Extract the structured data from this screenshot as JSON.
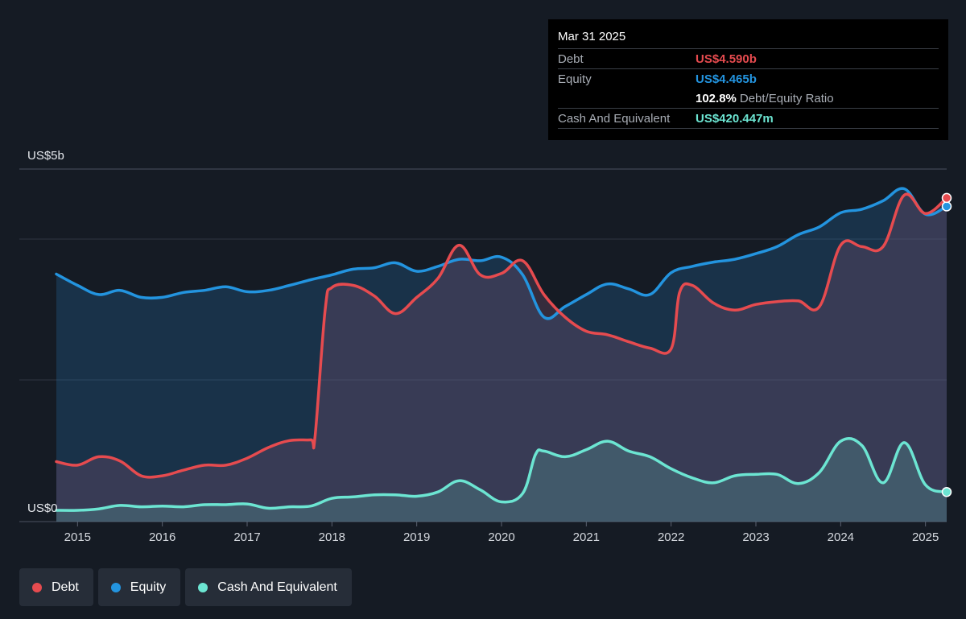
{
  "tooltip": {
    "date": "Mar 31 2025",
    "debt_label": "Debt",
    "debt_value": "US$4.590b",
    "equity_label": "Equity",
    "equity_value": "US$4.465b",
    "ratio_value": "102.8%",
    "ratio_label": "Debt/Equity Ratio",
    "cash_label": "Cash And Equivalent",
    "cash_value": "US$420.447m"
  },
  "legend": {
    "debt": "Debt",
    "equity": "Equity",
    "cash": "Cash And Equivalent"
  },
  "colors": {
    "debt": "#e64b4f",
    "equity": "#2394df",
    "cash": "#6ce5d2",
    "background": "#151b24"
  },
  "chart_data": {
    "type": "area",
    "ylabel_top": "US$5b",
    "ylabel_bottom": "US$0",
    "ylim": [
      0,
      5
    ],
    "xlim": [
      2014.75,
      2025.25
    ],
    "xticks": [
      "2015",
      "2016",
      "2017",
      "2018",
      "2019",
      "2020",
      "2021",
      "2022",
      "2023",
      "2024",
      "2025"
    ],
    "series": [
      {
        "name": "Debt",
        "x": [
          2014.75,
          2015.0,
          2015.25,
          2015.5,
          2015.75,
          2016.0,
          2016.25,
          2016.5,
          2016.75,
          2017.0,
          2017.25,
          2017.5,
          2017.75,
          2017.8,
          2017.92,
          2018.0,
          2018.25,
          2018.5,
          2018.75,
          2019.0,
          2019.25,
          2019.5,
          2019.75,
          2020.0,
          2020.25,
          2020.5,
          2020.75,
          2021.0,
          2021.25,
          2021.5,
          2021.75,
          2022.0,
          2022.1,
          2022.25,
          2022.5,
          2022.75,
          2023.0,
          2023.25,
          2023.5,
          2023.75,
          2024.0,
          2024.25,
          2024.5,
          2024.75,
          2025.0,
          2025.25
        ],
        "values": [
          0.85,
          0.8,
          0.92,
          0.86,
          0.65,
          0.65,
          0.73,
          0.8,
          0.8,
          0.9,
          1.05,
          1.15,
          1.16,
          1.2,
          3.0,
          3.32,
          3.35,
          3.2,
          2.95,
          3.18,
          3.45,
          3.92,
          3.5,
          3.52,
          3.7,
          3.22,
          2.9,
          2.7,
          2.65,
          2.55,
          2.46,
          2.45,
          3.25,
          3.35,
          3.1,
          3.0,
          3.08,
          3.12,
          3.13,
          3.05,
          3.92,
          3.9,
          3.9,
          4.63,
          4.37,
          4.59
        ]
      },
      {
        "name": "Equity",
        "x": [
          2014.75,
          2015.0,
          2015.25,
          2015.5,
          2015.75,
          2016.0,
          2016.25,
          2016.5,
          2016.75,
          2017.0,
          2017.25,
          2017.5,
          2017.75,
          2018.0,
          2018.25,
          2018.5,
          2018.75,
          2019.0,
          2019.25,
          2019.5,
          2019.75,
          2020.0,
          2020.25,
          2020.5,
          2020.75,
          2021.0,
          2021.25,
          2021.5,
          2021.75,
          2022.0,
          2022.25,
          2022.5,
          2022.75,
          2023.0,
          2023.25,
          2023.5,
          2023.75,
          2024.0,
          2024.25,
          2024.5,
          2024.75,
          2025.0,
          2025.25
        ],
        "values": [
          3.51,
          3.35,
          3.22,
          3.28,
          3.18,
          3.18,
          3.25,
          3.28,
          3.33,
          3.26,
          3.28,
          3.35,
          3.43,
          3.5,
          3.58,
          3.6,
          3.67,
          3.55,
          3.62,
          3.72,
          3.7,
          3.75,
          3.5,
          2.9,
          3.05,
          3.22,
          3.37,
          3.3,
          3.22,
          3.53,
          3.62,
          3.68,
          3.72,
          3.8,
          3.9,
          4.07,
          4.18,
          4.38,
          4.43,
          4.55,
          4.72,
          4.36,
          4.47
        ]
      },
      {
        "name": "Cash And Equivalent",
        "x": [
          2014.75,
          2015.0,
          2015.25,
          2015.5,
          2015.75,
          2016.0,
          2016.25,
          2016.5,
          2016.75,
          2017.0,
          2017.25,
          2017.5,
          2017.75,
          2018.0,
          2018.25,
          2018.5,
          2018.75,
          2019.0,
          2019.25,
          2019.5,
          2019.75,
          2020.0,
          2020.25,
          2020.4,
          2020.5,
          2020.75,
          2021.0,
          2021.25,
          2021.5,
          2021.75,
          2022.0,
          2022.25,
          2022.5,
          2022.75,
          2023.0,
          2023.25,
          2023.5,
          2023.75,
          2024.0,
          2024.25,
          2024.5,
          2024.75,
          2025.0,
          2025.25
        ],
        "values": [
          0.16,
          0.16,
          0.18,
          0.23,
          0.21,
          0.22,
          0.21,
          0.24,
          0.24,
          0.25,
          0.19,
          0.21,
          0.22,
          0.33,
          0.35,
          0.38,
          0.38,
          0.36,
          0.42,
          0.58,
          0.45,
          0.28,
          0.4,
          0.95,
          1.0,
          0.92,
          1.02,
          1.14,
          1.0,
          0.92,
          0.75,
          0.62,
          0.55,
          0.65,
          0.67,
          0.67,
          0.54,
          0.7,
          1.14,
          1.08,
          0.55,
          1.12,
          0.52,
          0.42
        ]
      }
    ],
    "grid": true,
    "legend_position": "bottom-left"
  }
}
